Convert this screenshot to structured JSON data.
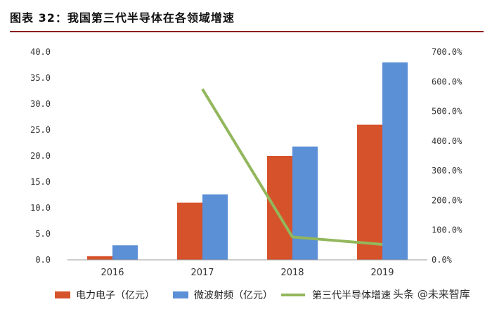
{
  "title": "图表 32：我国第三代半导体在各领域增速",
  "watermark": "头条 @未来智库",
  "colors": {
    "power_electronics": "#d6522b",
    "rf": "#5b8fd6",
    "growth": "#93b75c",
    "title_rule": "#8c1d1d"
  },
  "chart_data": {
    "type": "bar",
    "title": "我国第三代半导体在各领域增速",
    "categories": [
      "2016",
      "2017",
      "2018",
      "2019"
    ],
    "series": [
      {
        "name": "电力电子（亿元）",
        "type": "bar",
        "axis": "left",
        "values": [
          0.7,
          11.0,
          20.0,
          26.0
        ]
      },
      {
        "name": "微波射频（亿元）",
        "type": "bar",
        "axis": "left",
        "values": [
          2.8,
          12.6,
          21.8,
          38.0
        ]
      },
      {
        "name": "第三代半导体增速",
        "type": "line",
        "axis": "right",
        "values": [
          null,
          575,
          77,
          52
        ]
      }
    ],
    "ylim": [
      0,
      40
    ],
    "ylim_right": [
      0,
      700
    ],
    "yticks": [
      "0.0",
      "5.0",
      "10.0",
      "15.0",
      "20.0",
      "25.0",
      "30.0",
      "35.0",
      "40.0"
    ],
    "yticks_right": [
      "0.0%",
      "100.0%",
      "200.0%",
      "300.0%",
      "400.0%",
      "500.0%",
      "600.0%",
      "700.0%"
    ],
    "grid": false,
    "legend": "bottom"
  }
}
